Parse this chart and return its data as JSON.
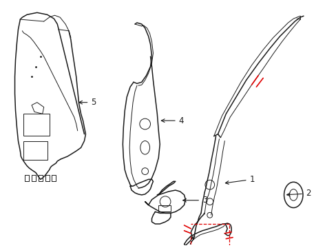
{
  "background_color": "#ffffff",
  "line_color": "#1a1a1a",
  "red_color": "#e00000",
  "figsize": [
    4.89,
    3.6
  ],
  "dpi": 100,
  "label_fontsize": 8.5,
  "parts": {
    "part5_label": "5",
    "part4_label": "4",
    "part3_label": "3",
    "part2_label": "2",
    "part1_label": "1"
  }
}
